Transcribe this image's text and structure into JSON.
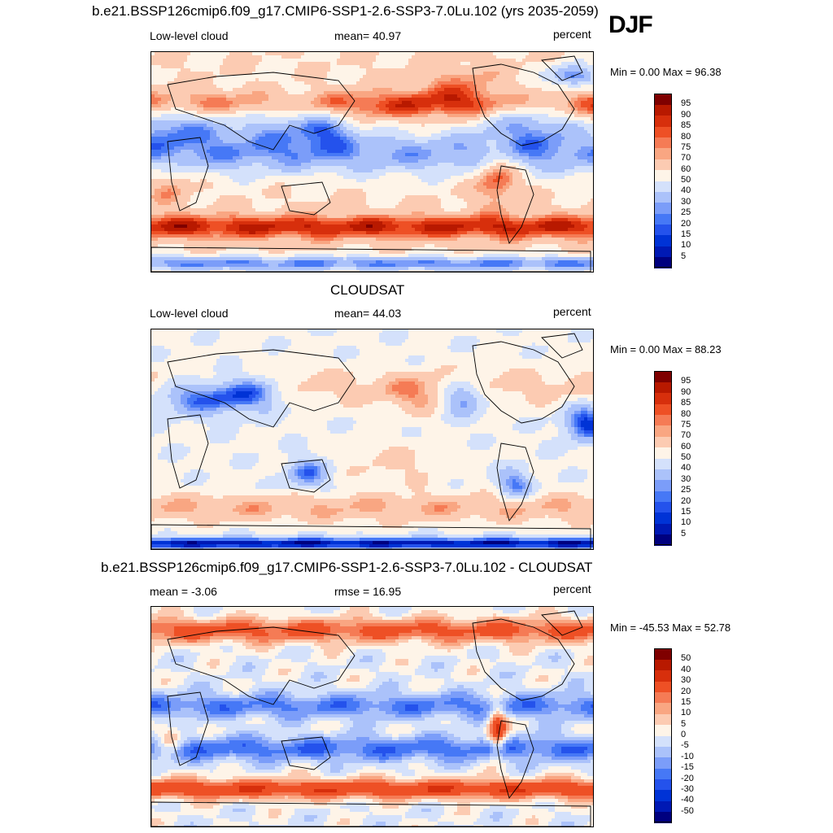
{
  "season": "DJF",
  "colors": {
    "levels_abs": [
      "#00007f",
      "#0019b4",
      "#0033d6",
      "#2452ec",
      "#4678f6",
      "#7b9df9",
      "#abc2fa",
      "#d4e1fb",
      "#fef4e8",
      "#fccbb2",
      "#f9a682",
      "#f57b55",
      "#ee5025",
      "#d72f0c",
      "#b81900",
      "#7f0000"
    ],
    "levels_diff": [
      "#00007f",
      "#0019b4",
      "#0033d6",
      "#2452ec",
      "#4678f6",
      "#7b9df9",
      "#abc2fa",
      "#d4e1fb",
      "#fef4e8",
      "#fccbb2",
      "#f9a682",
      "#f57b55",
      "#ee5025",
      "#d72f0c",
      "#b81900",
      "#7f0000"
    ],
    "coast": "#000000"
  },
  "chart_data": [
    {
      "type": "heatmap",
      "title": "b.e21.BSSP126cmip6.f09_g17.CMIP6-SSP1-2.6-SSP3-7.0Lu.102 (yrs 2035-2059)",
      "left_label": "Low-level cloud",
      "center_label": "mean=  40.97",
      "right_label": "percent",
      "min_max": "Min =   0.00 Max =  96.38",
      "mean": 40.97,
      "min": 0.0,
      "max": 96.38,
      "units": "percent",
      "colorbar_ticks": [
        "5",
        "10",
        "15",
        "20",
        "25",
        "30",
        "40",
        "50",
        "60",
        "70",
        "75",
        "80",
        "85",
        "90",
        "95"
      ]
    },
    {
      "type": "heatmap",
      "title": "CLOUDSAT",
      "left_label": "Low-level cloud",
      "center_label": "mean=  44.03",
      "right_label": "percent",
      "min_max": "Min =   0.00 Max =  88.23",
      "mean": 44.03,
      "min": 0.0,
      "max": 88.23,
      "units": "percent",
      "colorbar_ticks": [
        "5",
        "10",
        "15",
        "20",
        "25",
        "30",
        "40",
        "50",
        "60",
        "70",
        "75",
        "80",
        "85",
        "90",
        "95"
      ]
    },
    {
      "type": "heatmap",
      "title": "b.e21.BSSP126cmip6.f09_g17.CMIP6-SSP1-2.6-SSP3-7.0Lu.102 - CLOUDSAT",
      "left_label": "mean =  -3.06",
      "center_label": "rmse =  16.95",
      "right_label": "percent",
      "min_max": "Min = -45.53 Max =  52.78",
      "mean": -3.06,
      "rmse": 16.95,
      "min": -45.53,
      "max": 52.78,
      "units": "percent",
      "colorbar_ticks": [
        "-50",
        "-40",
        "-30",
        "-20",
        "-15",
        "-10",
        "-5",
        "0",
        "5",
        "10",
        "15",
        "20",
        "30",
        "40",
        "50"
      ]
    }
  ]
}
